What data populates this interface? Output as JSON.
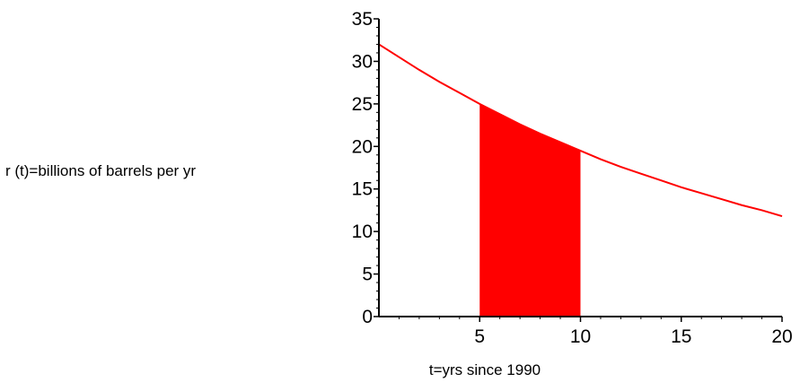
{
  "chart_data": {
    "type": "line",
    "title": "",
    "xlabel": "t=yrs since 1990",
    "ylabel": "r (t)=billions of barrels per yr",
    "xlim": [
      0,
      20
    ],
    "ylim": [
      0,
      35
    ],
    "x_ticks": [
      5,
      10,
      15,
      20
    ],
    "y_ticks": [
      0,
      5,
      10,
      15,
      20,
      25,
      30,
      35
    ],
    "x_tick_labels": [
      "5",
      "10",
      "15",
      "20"
    ],
    "y_tick_labels": [
      "0",
      "5",
      "10",
      "15",
      "20",
      "25",
      "30",
      "35"
    ],
    "series": [
      {
        "color": "#ff0000",
        "x": [
          0,
          1,
          2,
          3,
          4,
          5,
          6,
          7,
          8,
          9,
          10,
          11,
          12,
          13,
          14,
          15,
          16,
          17,
          18,
          19,
          20
        ],
        "y": [
          32,
          30.5,
          29,
          27.6,
          26.3,
          25,
          23.8,
          22.6,
          21.5,
          20.5,
          19.5,
          18.5,
          17.6,
          16.8,
          16,
          15.2,
          14.5,
          13.8,
          13.1,
          12.5,
          11.8
        ]
      }
    ],
    "shaded_region": {
      "x_from": 5,
      "x_to": 10,
      "color": "#ff0000"
    },
    "grid": false,
    "legend": "none"
  }
}
